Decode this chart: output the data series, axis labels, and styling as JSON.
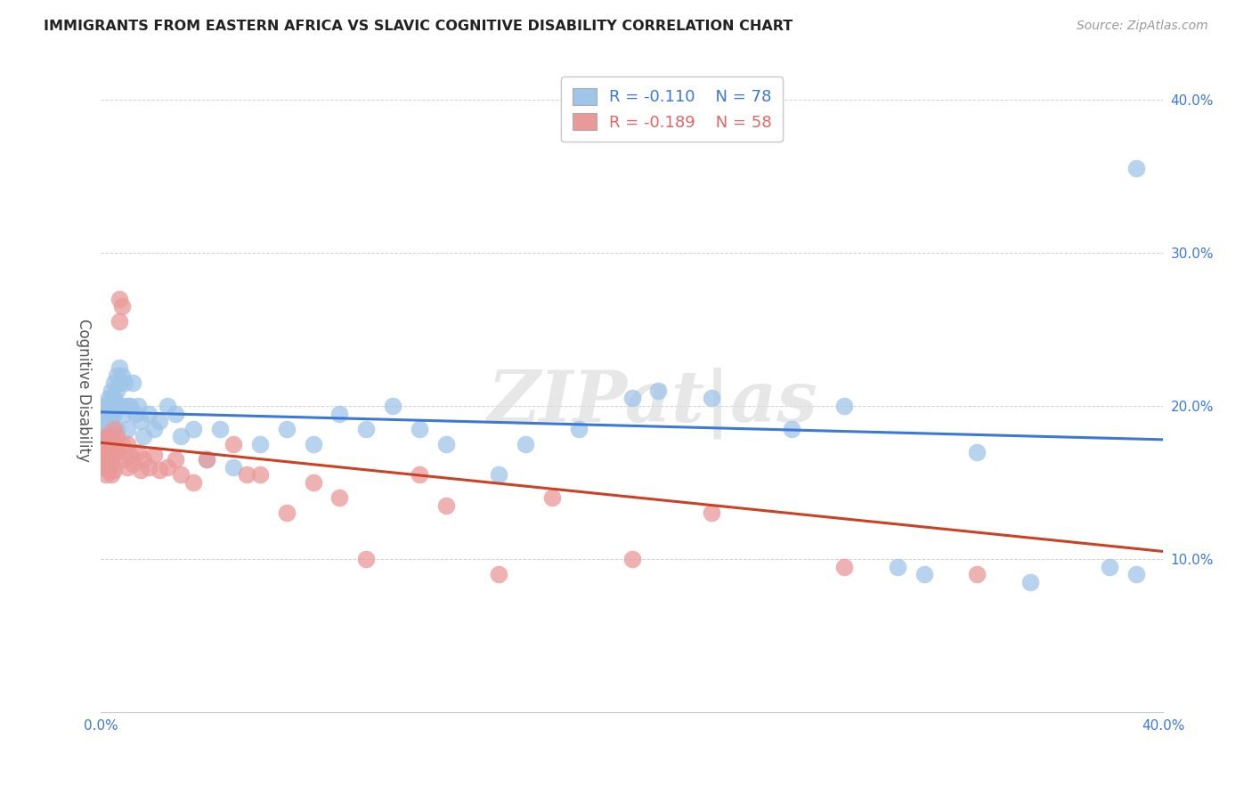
{
  "title": "IMMIGRANTS FROM EASTERN AFRICA VS SLAVIC COGNITIVE DISABILITY CORRELATION CHART",
  "source": "Source: ZipAtlas.com",
  "ylabel": "Cognitive Disability",
  "xlim": [
    0.0,
    0.4
  ],
  "ylim": [
    0.0,
    0.42
  ],
  "x_ticks": [
    0.0,
    0.1,
    0.2,
    0.3,
    0.4
  ],
  "x_tick_labels": [
    "0.0%",
    "",
    "",
    "",
    "40.0%"
  ],
  "y_ticks": [
    0.1,
    0.2,
    0.3,
    0.4
  ],
  "y_tick_labels": [
    "10.0%",
    "20.0%",
    "30.0%",
    "40.0%"
  ],
  "blue_color": "#9fc5e8",
  "pink_color": "#ea9999",
  "blue_line_color": "#3c78d8",
  "pink_line_color": "#cc4125",
  "watermark": "ZIPat|as",
  "legend_R_blue": "R = -0.110",
  "legend_N_blue": "N = 78",
  "legend_R_pink": "R = -0.189",
  "legend_N_pink": "N = 58",
  "blue_line_x0": 0.0,
  "blue_line_y0": 0.196,
  "blue_line_x1": 0.4,
  "blue_line_y1": 0.178,
  "pink_line_x0": 0.0,
  "pink_line_y0": 0.176,
  "pink_line_x1": 0.4,
  "pink_line_y1": 0.105,
  "blue_scatter_x": [
    0.001,
    0.001,
    0.001,
    0.001,
    0.002,
    0.002,
    0.002,
    0.002,
    0.002,
    0.003,
    0.003,
    0.003,
    0.003,
    0.003,
    0.003,
    0.004,
    0.004,
    0.004,
    0.004,
    0.004,
    0.004,
    0.005,
    0.005,
    0.005,
    0.005,
    0.005,
    0.006,
    0.006,
    0.006,
    0.006,
    0.007,
    0.007,
    0.007,
    0.008,
    0.008,
    0.009,
    0.009,
    0.01,
    0.01,
    0.011,
    0.012,
    0.013,
    0.014,
    0.015,
    0.016,
    0.018,
    0.02,
    0.022,
    0.025,
    0.028,
    0.03,
    0.035,
    0.04,
    0.045,
    0.05,
    0.06,
    0.07,
    0.08,
    0.09,
    0.1,
    0.11,
    0.12,
    0.13,
    0.15,
    0.16,
    0.18,
    0.2,
    0.21,
    0.23,
    0.26,
    0.28,
    0.3,
    0.31,
    0.33,
    0.35,
    0.38,
    0.39,
    0.39
  ],
  "blue_scatter_y": [
    0.2,
    0.195,
    0.195,
    0.19,
    0.2,
    0.195,
    0.19,
    0.185,
    0.195,
    0.205,
    0.2,
    0.195,
    0.19,
    0.185,
    0.18,
    0.21,
    0.205,
    0.195,
    0.19,
    0.185,
    0.18,
    0.215,
    0.205,
    0.2,
    0.195,
    0.185,
    0.22,
    0.21,
    0.2,
    0.185,
    0.225,
    0.215,
    0.2,
    0.22,
    0.2,
    0.215,
    0.195,
    0.2,
    0.185,
    0.2,
    0.215,
    0.195,
    0.2,
    0.19,
    0.18,
    0.195,
    0.185,
    0.19,
    0.2,
    0.195,
    0.18,
    0.185,
    0.165,
    0.185,
    0.16,
    0.175,
    0.185,
    0.175,
    0.195,
    0.185,
    0.2,
    0.185,
    0.175,
    0.155,
    0.175,
    0.185,
    0.205,
    0.21,
    0.205,
    0.185,
    0.2,
    0.095,
    0.09,
    0.17,
    0.085,
    0.095,
    0.355,
    0.09
  ],
  "pink_scatter_x": [
    0.001,
    0.001,
    0.001,
    0.001,
    0.002,
    0.002,
    0.002,
    0.002,
    0.002,
    0.003,
    0.003,
    0.003,
    0.003,
    0.004,
    0.004,
    0.004,
    0.004,
    0.005,
    0.005,
    0.005,
    0.005,
    0.006,
    0.006,
    0.007,
    0.007,
    0.008,
    0.008,
    0.009,
    0.01,
    0.01,
    0.011,
    0.012,
    0.014,
    0.015,
    0.016,
    0.018,
    0.02,
    0.022,
    0.025,
    0.028,
    0.03,
    0.035,
    0.04,
    0.05,
    0.055,
    0.06,
    0.07,
    0.08,
    0.09,
    0.1,
    0.12,
    0.13,
    0.15,
    0.17,
    0.2,
    0.23,
    0.28,
    0.33
  ],
  "pink_scatter_y": [
    0.175,
    0.17,
    0.165,
    0.16,
    0.18,
    0.175,
    0.168,
    0.162,
    0.155,
    0.18,
    0.172,
    0.165,
    0.158,
    0.178,
    0.17,
    0.162,
    0.155,
    0.185,
    0.175,
    0.168,
    0.158,
    0.18,
    0.17,
    0.255,
    0.27,
    0.265,
    0.175,
    0.165,
    0.175,
    0.16,
    0.168,
    0.162,
    0.17,
    0.158,
    0.165,
    0.16,
    0.168,
    0.158,
    0.16,
    0.165,
    0.155,
    0.15,
    0.165,
    0.175,
    0.155,
    0.155,
    0.13,
    0.15,
    0.14,
    0.1,
    0.155,
    0.135,
    0.09,
    0.14,
    0.1,
    0.13,
    0.095,
    0.09
  ]
}
